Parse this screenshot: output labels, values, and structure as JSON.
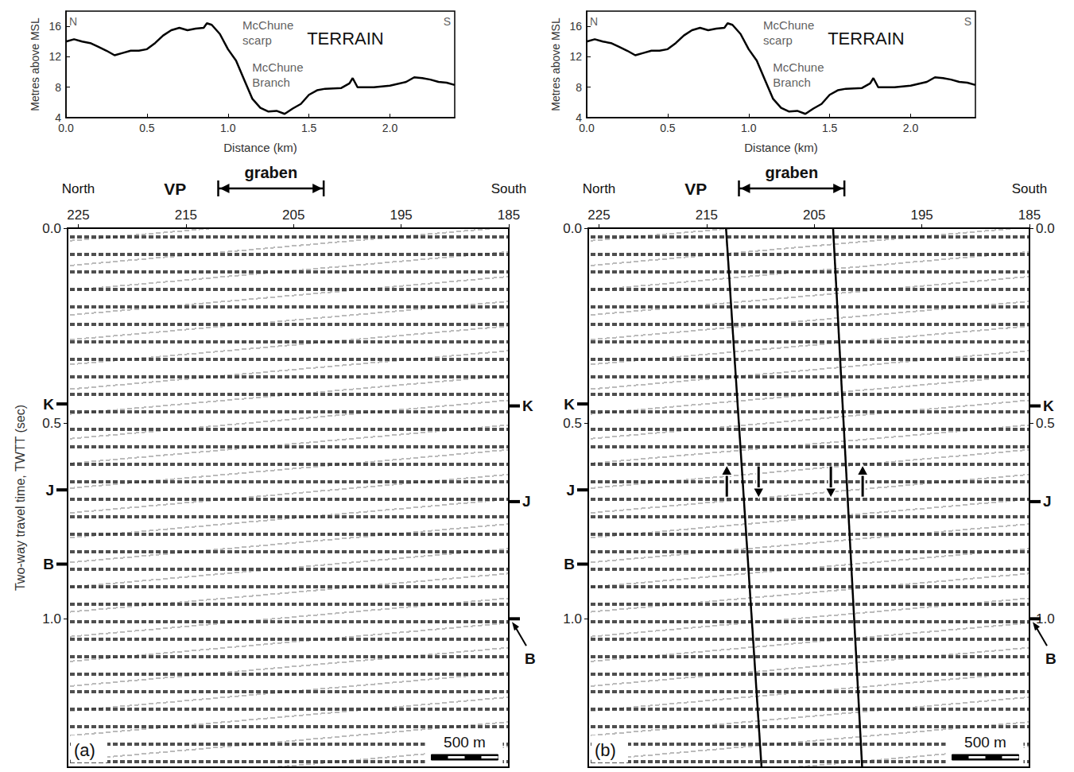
{
  "chart_data": [
    {
      "type": "line",
      "title": "TERRAIN",
      "xlabel": "Distance (km)",
      "ylabel": "Metres above MSL",
      "color": "#000000",
      "x": [
        0,
        0.05,
        0.1,
        0.15,
        0.2,
        0.25,
        0.3,
        0.35,
        0.4,
        0.45,
        0.5,
        0.55,
        0.6,
        0.65,
        0.7,
        0.75,
        0.8,
        0.85,
        0.87,
        0.9,
        0.95,
        1.0,
        1.05,
        1.1,
        1.15,
        1.2,
        1.25,
        1.3,
        1.35,
        1.4,
        1.45,
        1.5,
        1.55,
        1.6,
        1.7,
        1.75,
        1.77,
        1.8,
        1.9,
        2.0,
        2.1,
        2.15,
        2.2,
        2.25,
        2.3,
        2.35,
        2.4
      ],
      "values": [
        14.0,
        14.3,
        14.0,
        13.8,
        13.3,
        12.8,
        12.2,
        12.5,
        12.8,
        12.8,
        13.0,
        13.8,
        14.8,
        15.5,
        15.8,
        15.5,
        15.7,
        15.8,
        16.4,
        16.2,
        15.0,
        13.0,
        11.5,
        9.0,
        6.5,
        5.3,
        4.8,
        4.9,
        4.5,
        5.2,
        5.8,
        7.0,
        7.6,
        7.8,
        7.9,
        8.5,
        9.2,
        8.0,
        8.0,
        8.2,
        8.7,
        9.3,
        9.2,
        9.0,
        8.7,
        8.6,
        8.3
      ],
      "xlim": [
        0,
        2.4
      ],
      "xticks": [
        {
          "value": 0,
          "label": "0.0"
        },
        0.5,
        {
          "value": 1,
          "label": "1.0"
        },
        1.5,
        {
          "value": 2,
          "label": "2.0"
        }
      ],
      "ylim": [
        4,
        18
      ],
      "yticks": [
        4,
        8,
        12,
        16
      ],
      "annotations": [
        {
          "text": "N",
          "x": 0.02,
          "y": 16.6
        },
        {
          "text": "S",
          "x": 2.33,
          "y": 16.6
        },
        {
          "text": "McChune scarp",
          "x": 1.09,
          "y": 15.2
        },
        {
          "text": "McChune Branch",
          "x": 1.15,
          "y": 9.6
        }
      ]
    },
    {
      "type": "seismic_section",
      "panel_label": "(a)",
      "ylabel": "Two-way travel time, TWTT (sec)",
      "xlim": [
        185,
        226
      ],
      "xticks": [
        185,
        195,
        205,
        215,
        225
      ],
      "ylim": [
        0,
        1.38
      ],
      "yticks": [
        {
          "value": 0,
          "label": "0.0"
        },
        {
          "value": 0.5,
          "label": "0.5"
        },
        {
          "value": 1,
          "label": "1.0"
        }
      ],
      "annotations": [
        {
          "text": "North",
          "x": 225
        },
        {
          "text": "VP",
          "x": 216
        },
        {
          "text": "South",
          "x": 185
        }
      ],
      "graben": {
        "label": "graben",
        "x": [
          212,
          202.2
        ]
      },
      "horizons_left": [
        {
          "label": "K",
          "y": 0.45
        },
        {
          "label": "J",
          "y": 0.67
        },
        {
          "label": "B",
          "y": 0.86
        }
      ],
      "horizons_right": [
        {
          "label": "K",
          "y": 0.455
        },
        {
          "label": "J",
          "y": 0.7
        },
        {
          "label": "B",
          "y": 1.0
        }
      ],
      "scale_bar": {
        "label": "500 m",
        "x": [
          192.2,
          186
        ]
      }
    },
    {
      "type": "line",
      "title": "TERRAIN",
      "xlabel": "Distance (km)",
      "ylabel": "Metres above MSL",
      "color": "#000000",
      "x": [
        0,
        0.05,
        0.1,
        0.15,
        0.2,
        0.25,
        0.3,
        0.35,
        0.4,
        0.45,
        0.5,
        0.55,
        0.6,
        0.65,
        0.7,
        0.75,
        0.8,
        0.85,
        0.87,
        0.9,
        0.95,
        1.0,
        1.05,
        1.1,
        1.15,
        1.2,
        1.25,
        1.3,
        1.35,
        1.4,
        1.45,
        1.5,
        1.55,
        1.6,
        1.7,
        1.75,
        1.77,
        1.8,
        1.9,
        2.0,
        2.1,
        2.15,
        2.2,
        2.25,
        2.3,
        2.35,
        2.4
      ],
      "values": [
        14.0,
        14.3,
        14.0,
        13.8,
        13.3,
        12.8,
        12.2,
        12.5,
        12.8,
        12.8,
        13.0,
        13.8,
        14.8,
        15.5,
        15.8,
        15.5,
        15.7,
        15.8,
        16.4,
        16.2,
        15.0,
        13.0,
        11.5,
        9.0,
        6.5,
        5.3,
        4.8,
        4.9,
        4.5,
        5.2,
        5.8,
        7.0,
        7.6,
        7.8,
        7.9,
        8.5,
        9.2,
        8.0,
        8.0,
        8.2,
        8.7,
        9.3,
        9.2,
        9.0,
        8.7,
        8.6,
        8.3
      ],
      "xlim": [
        0,
        2.4
      ],
      "xticks": [
        {
          "value": 0,
          "label": "0.0"
        },
        0.5,
        {
          "value": 1,
          "label": "1.0"
        },
        1.5,
        {
          "value": 2,
          "label": "2.0"
        }
      ],
      "ylim": [
        4,
        18
      ],
      "yticks": [
        4,
        8,
        12,
        16
      ],
      "annotations": [
        {
          "text": "N",
          "x": 0.02,
          "y": 16.6
        },
        {
          "text": "S",
          "x": 2.33,
          "y": 16.6
        },
        {
          "text": "McChune scarp",
          "x": 1.09,
          "y": 15.2
        },
        {
          "text": "McChune Branch",
          "x": 1.15,
          "y": 9.6
        }
      ]
    },
    {
      "type": "seismic_section",
      "panel_label": "(b)",
      "color": "#000000",
      "xlim": [
        185,
        226
      ],
      "xticks": [
        185,
        195,
        205,
        215,
        225
      ],
      "ylim": [
        0,
        1.38
      ],
      "yticks": [
        {
          "value": 0,
          "label": "0.0"
        },
        {
          "value": 0.5,
          "label": "0.5"
        },
        {
          "value": 1,
          "label": "1.0"
        }
      ],
      "y2lim": [
        0,
        1.38
      ],
      "y2ticks": [
        {
          "value": 0,
          "label": "0.0"
        },
        {
          "value": 0.5,
          "label": "0.5"
        },
        {
          "value": 1,
          "label": "1.0"
        }
      ],
      "annotations": [
        {
          "text": "North",
          "x": 225
        },
        {
          "text": "VP",
          "x": 216
        },
        {
          "text": "South",
          "x": 185
        }
      ],
      "graben": {
        "label": "graben",
        "x": [
          212,
          202.2
        ]
      },
      "horizons_left": [
        {
          "label": "K",
          "y": 0.45
        },
        {
          "label": "J",
          "y": 0.67
        },
        {
          "label": "B",
          "y": 0.86
        }
      ],
      "horizons_right": [
        {
          "label": "K",
          "y": 0.455
        },
        {
          "label": "J",
          "y": 0.7
        },
        {
          "label": "B",
          "y": 1.0
        }
      ],
      "scale_bar": {
        "label": "500 m",
        "x": [
          192.2,
          186
        ]
      },
      "faults": [
        {
          "x": [
            213.2,
            209.9
          ],
          "y": [
            0,
            1.38
          ],
          "downthrown": "south"
        },
        {
          "x": [
            203.25,
            200.55
          ],
          "y": [
            0,
            1.38
          ],
          "downthrown": "north"
        }
      ]
    }
  ]
}
